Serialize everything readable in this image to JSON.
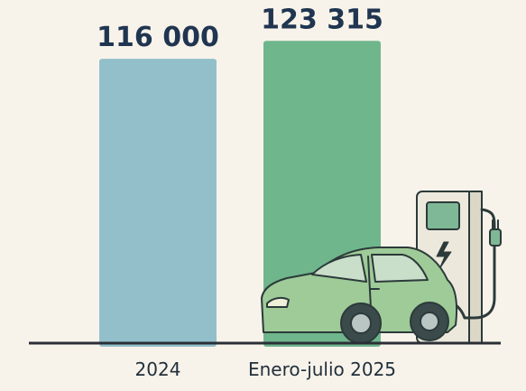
{
  "chart_data": {
    "type": "bar",
    "categories": [
      "2024",
      "Enero-julio 2025"
    ],
    "values": [
      116000,
      123315
    ],
    "value_labels": [
      "116 000",
      "123 315"
    ],
    "bar_colors": [
      "#92bfc9",
      "#6fb68c"
    ],
    "ylim": [
      0,
      140000
    ],
    "grid": false,
    "legend": "none",
    "illustration": [
      "ev-car-icon",
      "charging-station-icon"
    ]
  }
}
